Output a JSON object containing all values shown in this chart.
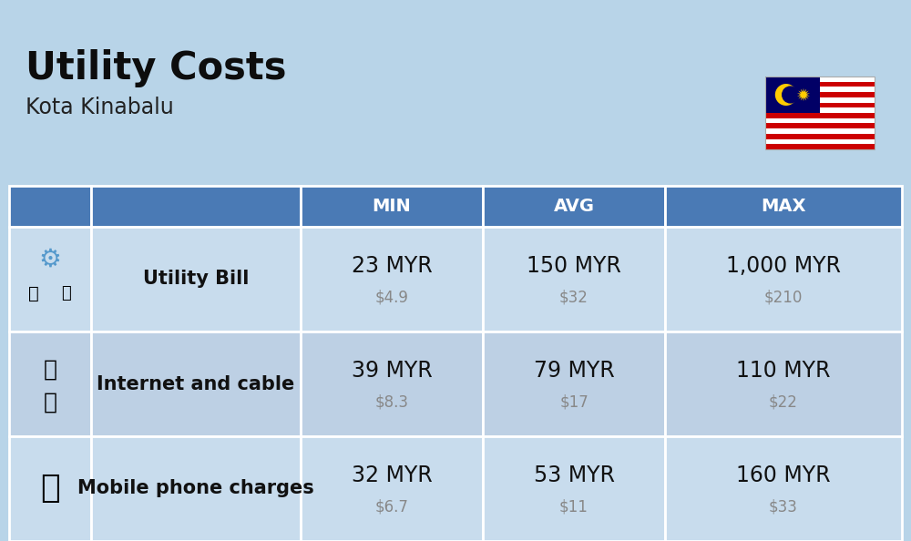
{
  "title": "Utility Costs",
  "subtitle": "Kota Kinabalu",
  "background_color": "#b8d4e8",
  "header_color": "#4a7ab5",
  "header_text_color": "#ffffff",
  "row_bg_colors": [
    "#c8dced",
    "#bdd0e4",
    "#c8dced"
  ],
  "col_headers": [
    "MIN",
    "AVG",
    "MAX"
  ],
  "rows": [
    {
      "label": "Utility Bill",
      "min_myr": "23 MYR",
      "min_usd": "$4.9",
      "avg_myr": "150 MYR",
      "avg_usd": "$32",
      "max_myr": "1,000 MYR",
      "max_usd": "$210"
    },
    {
      "label": "Internet and cable",
      "min_myr": "39 MYR",
      "min_usd": "$8.3",
      "avg_myr": "79 MYR",
      "avg_usd": "$17",
      "max_myr": "110 MYR",
      "max_usd": "$22"
    },
    {
      "label": "Mobile phone charges",
      "min_myr": "32 MYR",
      "min_usd": "$6.7",
      "avg_myr": "53 MYR",
      "avg_usd": "$11",
      "max_myr": "160 MYR",
      "max_usd": "$33"
    }
  ],
  "title_fontsize": 30,
  "subtitle_fontsize": 17,
  "header_fontsize": 14,
  "cell_myr_fontsize": 17,
  "cell_usd_fontsize": 12,
  "label_fontsize": 15,
  "title_color": "#0d0d0d",
  "subtitle_color": "#222222",
  "cell_myr_color": "#111111",
  "cell_usd_color": "#888888",
  "label_color": "#111111"
}
